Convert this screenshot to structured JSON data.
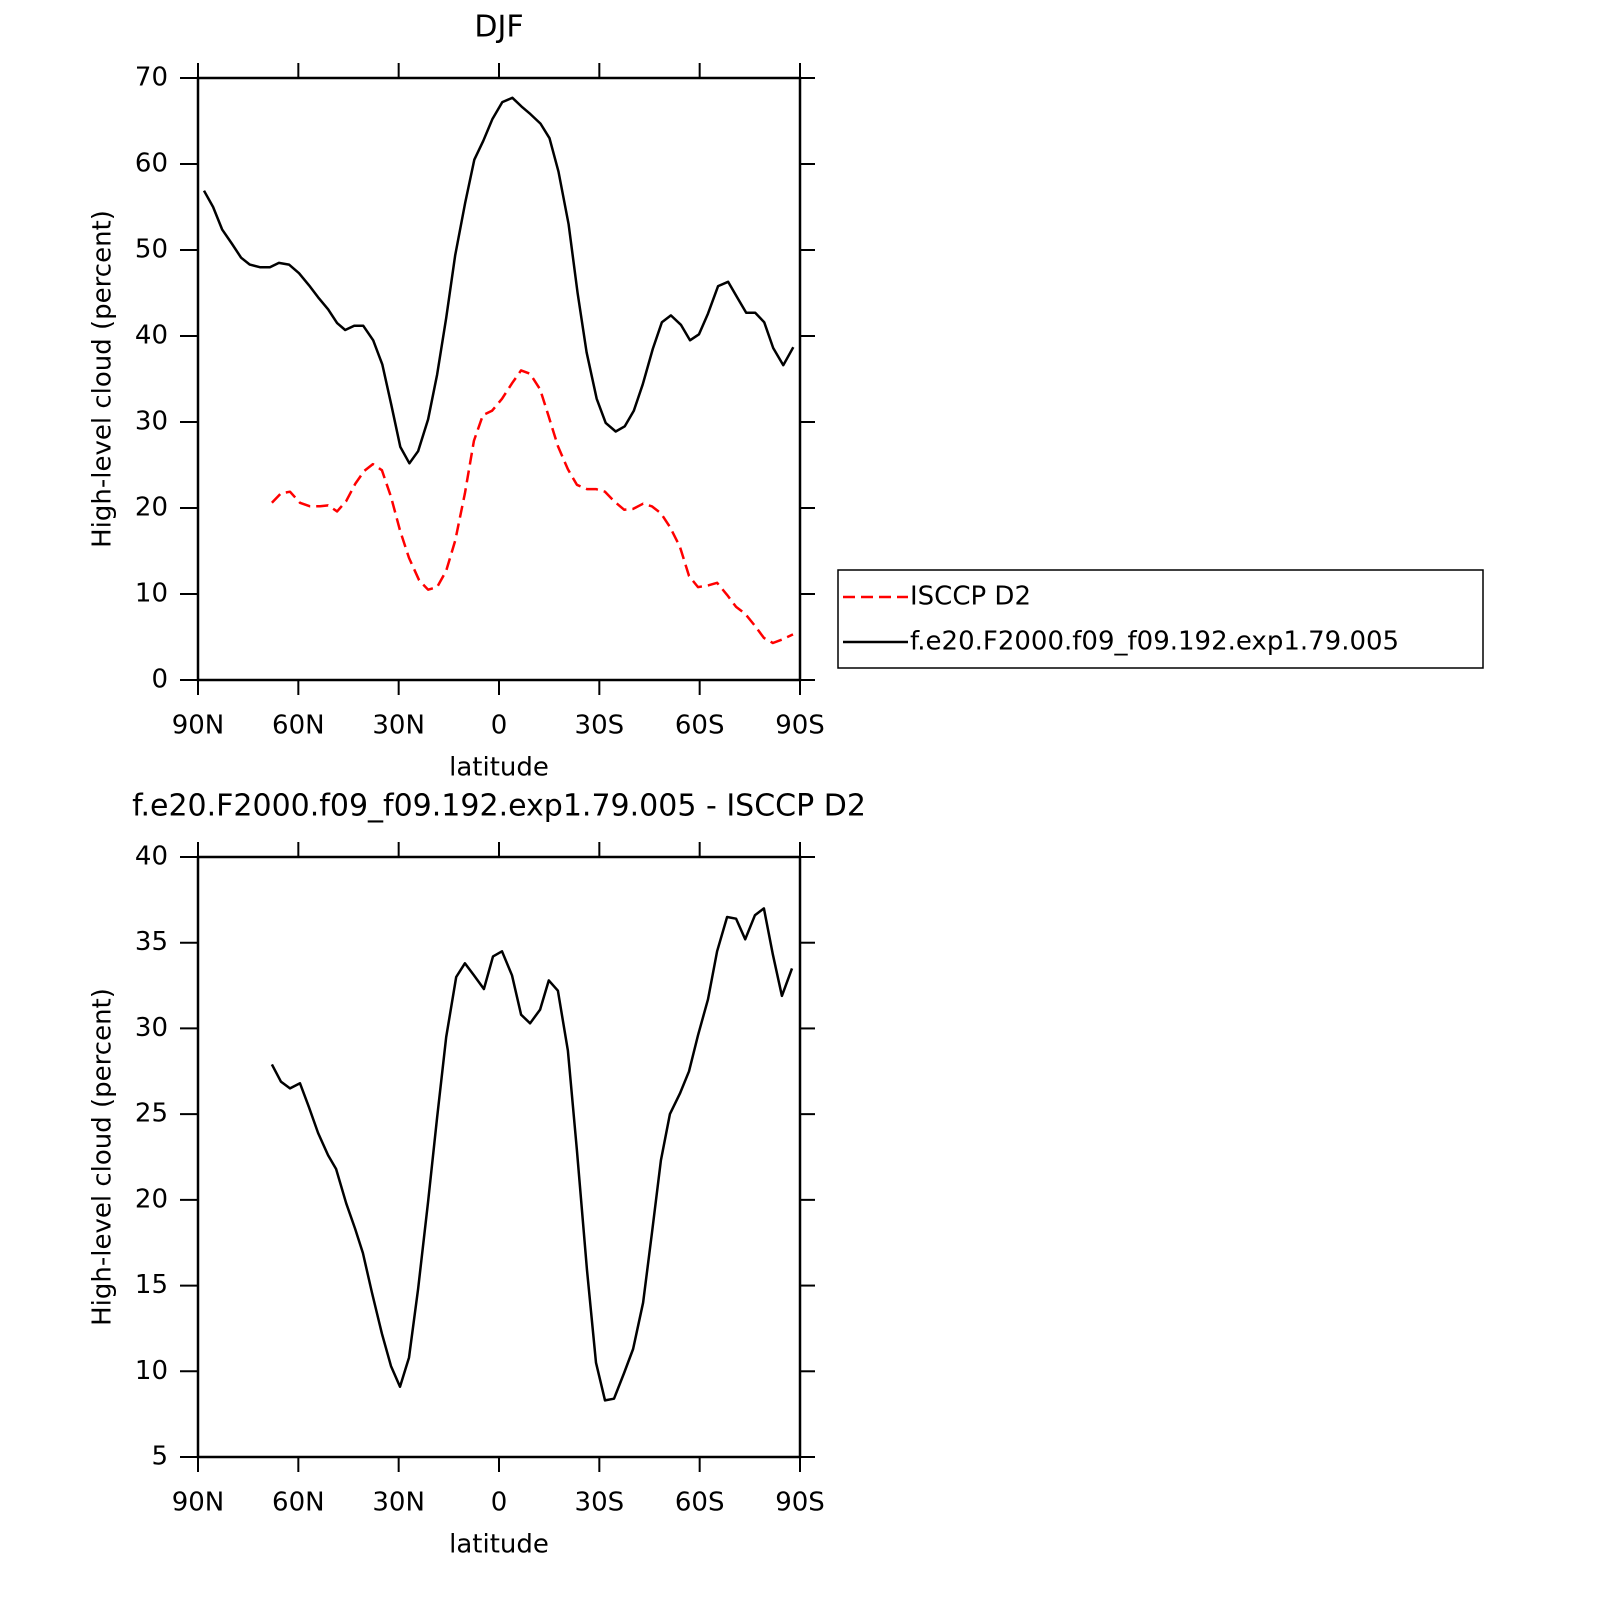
{
  "chart_data": [
    {
      "type": "line",
      "title": "DJF",
      "xlabel": "latitude",
      "ylabel": "High-level cloud (percent)",
      "xlim": [
        90,
        -90
      ],
      "xticks": [
        {
          "value": 90,
          "label": "90N"
        },
        {
          "value": 60,
          "label": "60N"
        },
        {
          "value": 30,
          "label": "30N"
        },
        0,
        {
          "value": -30,
          "label": "30S"
        },
        {
          "value": -60,
          "label": "60S"
        },
        {
          "value": -90,
          "label": "90S"
        }
      ],
      "ylim": [
        0,
        70
      ],
      "yticks": [
        0,
        10,
        20,
        30,
        40,
        50,
        60,
        70
      ],
      "legend": "right",
      "series": [
        {
          "name": "ISCCP D2",
          "color": "#ff0000",
          "line_style": "dashed",
          "x": [
            67.9,
            65.2,
            62.5,
            59.5,
            56.5,
            53.5,
            51.1,
            48.4,
            45.7,
            43.0,
            40.3,
            37.7,
            35.0,
            32.3,
            29.6,
            26.9,
            23.9,
            21.2,
            18.5,
            15.8,
            13.1,
            10.2,
            7.5,
            4.8,
            2.1,
            -0.9,
            -3.9,
            -6.6,
            -9.3,
            -12.3,
            -14.9,
            -17.6,
            -20.6,
            -23.3,
            -26.3,
            -29.0,
            -31.7,
            -34.4,
            -37.4,
            -40.1,
            -43.1,
            -45.7,
            -48.4,
            -51.1,
            -54.1,
            -56.8,
            -59.5,
            -62.5,
            -65.2,
            -68.2,
            -70.9,
            -73.6,
            -76.5,
            -79.2,
            -81.9,
            -84.6,
            -87.9
          ],
          "values": [
            20.6,
            21.7,
            21.9,
            20.6,
            20.2,
            20.2,
            20.3,
            19.6,
            20.8,
            22.8,
            24.3,
            25.1,
            24.4,
            21.3,
            17.4,
            14.2,
            11.6,
            10.5,
            10.8,
            12.7,
            16.2,
            21.7,
            27.8,
            30.8,
            31.3,
            32.7,
            34.5,
            36.0,
            35.6,
            33.8,
            30.6,
            27.2,
            24.5,
            22.7,
            22.2,
            22.2,
            21.9,
            20.8,
            19.8,
            19.9,
            20.5,
            20.2,
            19.4,
            17.8,
            15.5,
            12.1,
            10.8,
            11.0,
            11.3,
            9.9,
            8.5,
            7.7,
            6.3,
            4.9,
            4.3,
            4.7,
            5.3
          ]
        },
        {
          "name": "f.e20.F2000.f09_f09.192.exp1.79.005",
          "color": "#000000",
          "line_style": "solid",
          "x": [
            88.2,
            85.5,
            82.8,
            79.8,
            77.1,
            74.5,
            71.5,
            68.5,
            65.8,
            62.8,
            59.8,
            56.8,
            54.1,
            51.1,
            48.4,
            46.0,
            43.3,
            40.6,
            37.6,
            34.9,
            32.2,
            29.5,
            26.8,
            24.2,
            21.2,
            18.5,
            15.8,
            13.1,
            10.1,
            7.4,
            4.7,
            2.0,
            -1.0,
            -4.0,
            -6.7,
            -9.4,
            -12.4,
            -15.1,
            -17.8,
            -20.8,
            -23.5,
            -26.2,
            -29.2,
            -31.9,
            -34.9,
            -37.6,
            -40.3,
            -43.0,
            -46.0,
            -48.7,
            -51.4,
            -54.4,
            -57.1,
            -59.8,
            -62.5,
            -65.5,
            -68.5,
            -71.2,
            -73.9,
            -76.6,
            -79.3,
            -82.0,
            -85.0,
            -88.0
          ],
          "values": [
            56.9,
            55.0,
            52.4,
            50.7,
            49.1,
            48.3,
            48.0,
            48.0,
            48.5,
            48.3,
            47.3,
            45.9,
            44.5,
            43.1,
            41.5,
            40.7,
            41.2,
            41.2,
            39.5,
            36.7,
            32.0,
            27.1,
            25.2,
            26.6,
            30.3,
            35.5,
            42.1,
            49.4,
            55.5,
            60.5,
            62.7,
            65.2,
            67.2,
            67.7,
            66.7,
            65.8,
            64.7,
            63.0,
            59.1,
            53.0,
            45.0,
            38.1,
            32.7,
            29.9,
            28.9,
            29.5,
            31.3,
            34.4,
            38.5,
            41.6,
            42.4,
            41.3,
            39.5,
            40.2,
            42.6,
            45.8,
            46.3,
            44.5,
            42.7,
            42.7,
            41.6,
            38.6,
            36.6,
            38.7
          ]
        }
      ]
    },
    {
      "type": "line",
      "title": "f.e20.F2000.f09_f09.192.exp1.79.005 - ISCCP D2",
      "xlabel": "latitude",
      "ylabel": "High-level cloud (percent)",
      "xlim": [
        90,
        -90
      ],
      "xticks": [
        {
          "value": 90,
          "label": "90N"
        },
        {
          "value": 60,
          "label": "60N"
        },
        {
          "value": 30,
          "label": "30N"
        },
        0,
        {
          "value": -30,
          "label": "30S"
        },
        {
          "value": -60,
          "label": "60S"
        },
        {
          "value": -90,
          "label": "90S"
        }
      ],
      "ylim": [
        5,
        40
      ],
      "yticks": [
        5,
        10,
        15,
        20,
        25,
        30,
        35,
        40
      ],
      "series": [
        {
          "color": "#000000",
          "line_style": "solid",
          "x": [
            67.9,
            65.2,
            62.5,
            59.5,
            56.8,
            54.1,
            51.1,
            48.7,
            45.7,
            43.0,
            40.7,
            38.0,
            35.0,
            32.3,
            29.6,
            26.9,
            24.2,
            21.2,
            18.5,
            15.8,
            12.8,
            10.2,
            7.5,
            4.5,
            1.8,
            -0.9,
            -3.9,
            -6.6,
            -9.3,
            -12.3,
            -14.9,
            -17.6,
            -20.6,
            -23.3,
            -26.3,
            -29.0,
            -31.7,
            -34.4,
            -37.4,
            -40.1,
            -43.1,
            -45.7,
            -48.4,
            -51.1,
            -54.1,
            -56.8,
            -59.5,
            -62.5,
            -65.2,
            -68.2,
            -70.9,
            -73.6,
            -76.5,
            -79.2,
            -81.9,
            -84.6,
            -87.6
          ],
          "values": [
            27.9,
            26.9,
            26.5,
            26.8,
            25.4,
            23.9,
            22.6,
            21.8,
            19.8,
            18.3,
            16.9,
            14.6,
            12.2,
            10.3,
            9.1,
            10.8,
            14.8,
            19.9,
            24.8,
            29.5,
            33.0,
            33.8,
            33.1,
            32.3,
            34.2,
            34.5,
            33.1,
            30.8,
            30.3,
            31.1,
            32.8,
            32.2,
            28.7,
            22.9,
            15.9,
            10.5,
            8.3,
            8.4,
            9.9,
            11.3,
            14.0,
            18.0,
            22.3,
            25.0,
            26.2,
            27.5,
            29.6,
            31.7,
            34.5,
            36.5,
            36.4,
            35.2,
            36.6,
            37.0,
            34.3,
            31.9,
            33.5
          ]
        }
      ]
    }
  ]
}
